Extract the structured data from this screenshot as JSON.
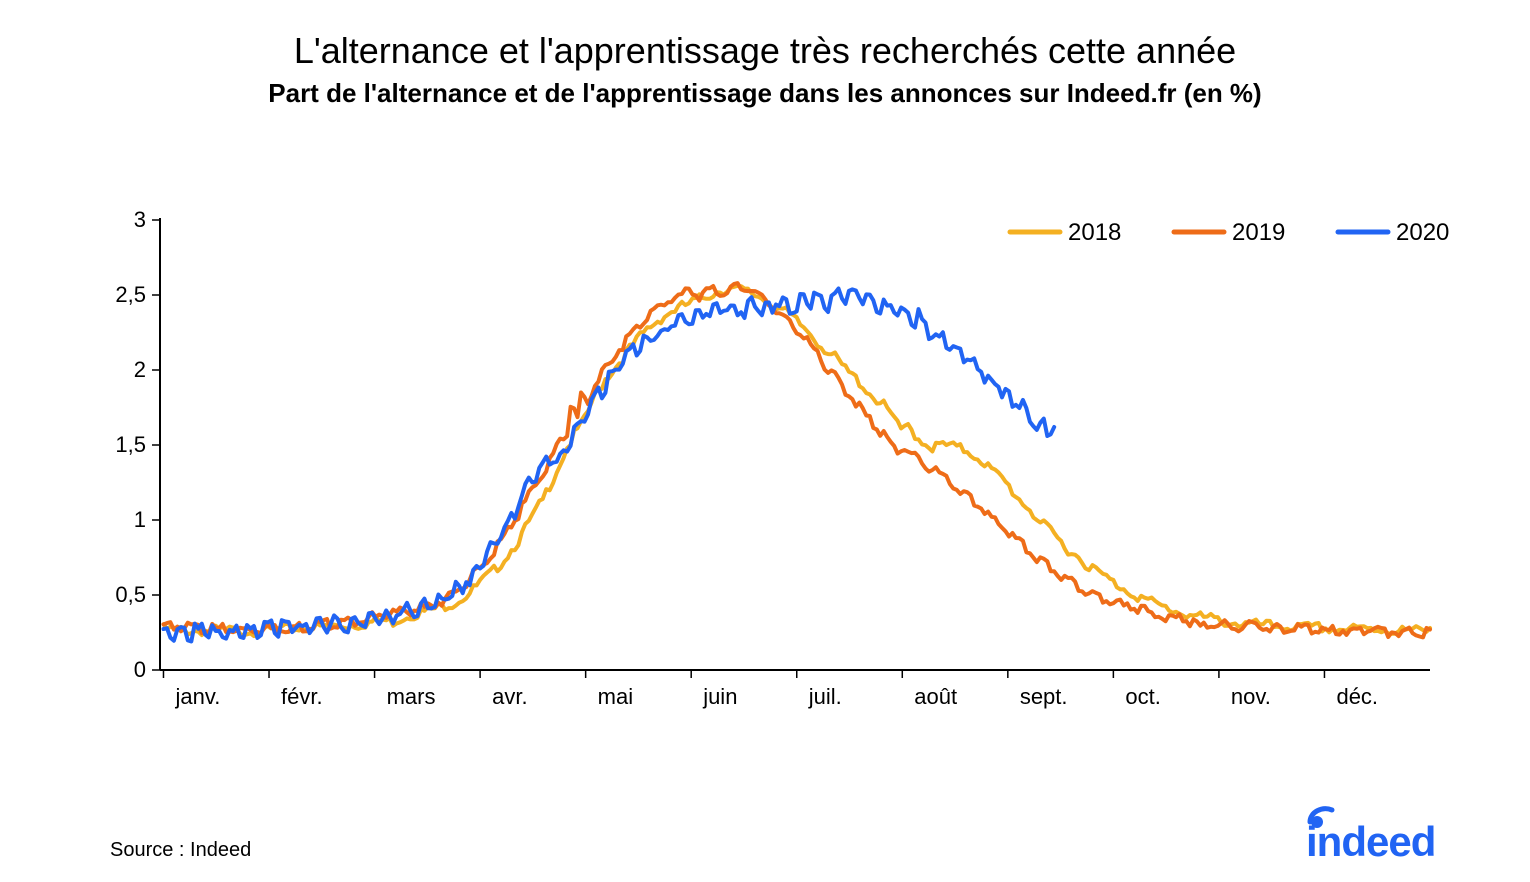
{
  "title": "L'alternance et l'apprentissage très recherchés cette année",
  "subtitle": "Part de l'alternance et de l'apprentissage dans les annonces sur Indeed.fr (en %)",
  "source": "Source : Indeed",
  "logo_text": "indeed",
  "chart": {
    "type": "line",
    "background_color": "#ffffff",
    "axis_color": "#000000",
    "axis_fontsize": 22,
    "title_fontsize": 36,
    "subtitle_fontsize": 26,
    "line_width": 4,
    "x_labels": [
      "janv.",
      "févr.",
      "mars",
      "avr.",
      "mai",
      "juin",
      "juil.",
      "août",
      "sept.",
      "oct.",
      "nov.",
      "déc."
    ],
    "y_ticks": [
      0,
      0.5,
      1,
      1.5,
      2,
      2.5,
      3
    ],
    "y_tick_labels": [
      "0",
      "0,5",
      "1",
      "1,5",
      "2",
      "2,5",
      "3"
    ],
    "ylim": [
      0,
      3
    ],
    "xlim": [
      0,
      365
    ],
    "legend": {
      "position": "top-right",
      "fontsize": 24,
      "items": [
        {
          "label": "2018",
          "color": "#f4b022"
        },
        {
          "label": "2019",
          "color": "#ee6c18"
        },
        {
          "label": "2020",
          "color": "#2164f3"
        }
      ]
    },
    "series": [
      {
        "name": "2018",
        "color": "#f4b022",
        "data": [
          [
            1,
            0.29
          ],
          [
            8,
            0.28
          ],
          [
            15,
            0.28
          ],
          [
            22,
            0.28
          ],
          [
            29,
            0.28
          ],
          [
            36,
            0.29
          ],
          [
            43,
            0.3
          ],
          [
            50,
            0.31
          ],
          [
            57,
            0.32
          ],
          [
            59,
            0.33
          ],
          [
            64,
            0.35
          ],
          [
            67,
            0.34
          ],
          [
            71,
            0.38
          ],
          [
            75,
            0.4
          ],
          [
            78,
            0.42
          ],
          [
            82,
            0.45
          ],
          [
            85,
            0.47
          ],
          [
            89,
            0.53
          ],
          [
            92,
            0.6
          ],
          [
            96,
            0.68
          ],
          [
            99,
            0.76
          ],
          [
            103,
            0.88
          ],
          [
            106,
            1.0
          ],
          [
            110,
            1.15
          ],
          [
            113,
            1.3
          ],
          [
            117,
            1.5
          ],
          [
            120,
            1.62
          ],
          [
            122,
            1.68
          ],
          [
            124,
            1.8
          ],
          [
            126,
            1.88
          ],
          [
            128,
            1.96
          ],
          [
            131,
            2.04
          ],
          [
            134,
            2.13
          ],
          [
            138,
            2.24
          ],
          [
            141,
            2.31
          ],
          [
            145,
            2.38
          ],
          [
            148,
            2.42
          ],
          [
            150,
            2.44
          ],
          [
            153,
            2.47
          ],
          [
            155,
            2.49
          ],
          [
            158,
            2.52
          ],
          [
            161,
            2.55
          ],
          [
            164,
            2.56
          ],
          [
            167,
            2.55
          ],
          [
            170,
            2.53
          ],
          [
            173,
            2.5
          ],
          [
            176,
            2.46
          ],
          [
            180,
            2.4
          ],
          [
            183,
            2.34
          ],
          [
            187,
            2.26
          ],
          [
            190,
            2.18
          ],
          [
            194,
            2.1
          ],
          [
            197,
            2.02
          ],
          [
            201,
            1.94
          ],
          [
            204,
            1.86
          ],
          [
            208,
            1.78
          ],
          [
            211,
            1.7
          ],
          [
            213,
            1.6
          ],
          [
            215,
            1.65
          ],
          [
            218,
            1.56
          ],
          [
            222,
            1.5
          ],
          [
            225,
            1.52
          ],
          [
            229,
            1.5
          ],
          [
            232,
            1.48
          ],
          [
            236,
            1.42
          ],
          [
            239,
            1.35
          ],
          [
            243,
            1.27
          ],
          [
            246,
            1.18
          ],
          [
            250,
            1.09
          ],
          [
            253,
            1.0
          ],
          [
            257,
            0.92
          ],
          [
            260,
            0.84
          ],
          [
            264,
            0.77
          ],
          [
            267,
            0.71
          ],
          [
            271,
            0.65
          ],
          [
            274,
            0.6
          ],
          [
            278,
            0.55
          ],
          [
            281,
            0.51
          ],
          [
            285,
            0.47
          ],
          [
            288,
            0.44
          ],
          [
            292,
            0.41
          ],
          [
            295,
            0.39
          ],
          [
            299,
            0.37
          ],
          [
            302,
            0.36
          ],
          [
            306,
            0.34
          ],
          [
            309,
            0.33
          ],
          [
            313,
            0.32
          ],
          [
            316,
            0.32
          ],
          [
            320,
            0.31
          ],
          [
            323,
            0.31
          ],
          [
            327,
            0.3
          ],
          [
            330,
            0.3
          ],
          [
            334,
            0.3
          ],
          [
            337,
            0.29
          ],
          [
            341,
            0.29
          ],
          [
            344,
            0.29
          ],
          [
            348,
            0.29
          ],
          [
            351,
            0.29
          ],
          [
            355,
            0.28
          ],
          [
            358,
            0.28
          ],
          [
            362,
            0.28
          ],
          [
            365,
            0.28
          ]
        ]
      },
      {
        "name": "2019",
        "color": "#ee6c18",
        "data": [
          [
            1,
            0.32
          ],
          [
            8,
            0.3
          ],
          [
            15,
            0.29
          ],
          [
            22,
            0.29
          ],
          [
            29,
            0.29
          ],
          [
            36,
            0.3
          ],
          [
            43,
            0.31
          ],
          [
            50,
            0.33
          ],
          [
            57,
            0.35
          ],
          [
            59,
            0.36
          ],
          [
            64,
            0.38
          ],
          [
            67,
            0.4
          ],
          [
            71,
            0.41
          ],
          [
            75,
            0.43
          ],
          [
            78,
            0.45
          ],
          [
            82,
            0.49
          ],
          [
            85,
            0.54
          ],
          [
            89,
            0.62
          ],
          [
            92,
            0.7
          ],
          [
            96,
            0.8
          ],
          [
            99,
            0.92
          ],
          [
            103,
            1.05
          ],
          [
            106,
            1.18
          ],
          [
            110,
            1.32
          ],
          [
            113,
            1.46
          ],
          [
            117,
            1.6
          ],
          [
            118,
            1.8
          ],
          [
            120,
            1.68
          ],
          [
            121,
            1.85
          ],
          [
            123,
            1.8
          ],
          [
            125,
            1.92
          ],
          [
            128,
            2.02
          ],
          [
            131,
            2.12
          ],
          [
            134,
            2.22
          ],
          [
            138,
            2.32
          ],
          [
            141,
            2.4
          ],
          [
            145,
            2.46
          ],
          [
            148,
            2.5
          ],
          [
            150,
            2.52
          ],
          [
            153,
            2.55
          ],
          [
            155,
            2.5
          ],
          [
            158,
            2.56
          ],
          [
            161,
            2.52
          ],
          [
            164,
            2.55
          ],
          [
            167,
            2.58
          ],
          [
            170,
            2.55
          ],
          [
            173,
            2.5
          ],
          [
            176,
            2.44
          ],
          [
            180,
            2.36
          ],
          [
            183,
            2.28
          ],
          [
            187,
            2.18
          ],
          [
            190,
            2.08
          ],
          [
            194,
            1.98
          ],
          [
            197,
            1.88
          ],
          [
            201,
            1.78
          ],
          [
            204,
            1.68
          ],
          [
            208,
            1.58
          ],
          [
            211,
            1.5
          ],
          [
            215,
            1.48
          ],
          [
            218,
            1.42
          ],
          [
            222,
            1.36
          ],
          [
            225,
            1.3
          ],
          [
            229,
            1.24
          ],
          [
            232,
            1.17
          ],
          [
            236,
            1.1
          ],
          [
            239,
            1.03
          ],
          [
            243,
            0.95
          ],
          [
            246,
            0.88
          ],
          [
            250,
            0.81
          ],
          [
            253,
            0.74
          ],
          [
            257,
            0.68
          ],
          [
            260,
            0.63
          ],
          [
            264,
            0.58
          ],
          [
            267,
            0.54
          ],
          [
            271,
            0.5
          ],
          [
            274,
            0.47
          ],
          [
            278,
            0.44
          ],
          [
            281,
            0.42
          ],
          [
            285,
            0.4
          ],
          [
            288,
            0.38
          ],
          [
            292,
            0.36
          ],
          [
            295,
            0.35
          ],
          [
            299,
            0.3
          ],
          [
            302,
            0.33
          ],
          [
            306,
            0.32
          ],
          [
            309,
            0.31
          ],
          [
            313,
            0.31
          ],
          [
            316,
            0.3
          ],
          [
            320,
            0.3
          ],
          [
            323,
            0.29
          ],
          [
            327,
            0.29
          ],
          [
            330,
            0.29
          ],
          [
            334,
            0.28
          ],
          [
            337,
            0.28
          ],
          [
            341,
            0.28
          ],
          [
            344,
            0.28
          ],
          [
            348,
            0.28
          ],
          [
            351,
            0.27
          ],
          [
            355,
            0.27
          ],
          [
            358,
            0.27
          ],
          [
            362,
            0.27
          ],
          [
            365,
            0.27
          ]
        ]
      },
      {
        "name": "2020",
        "color": "#2164f3",
        "data": [
          [
            1,
            0.27
          ],
          [
            8,
            0.28
          ],
          [
            15,
            0.28
          ],
          [
            22,
            0.29
          ],
          [
            29,
            0.3
          ],
          [
            36,
            0.31
          ],
          [
            43,
            0.32
          ],
          [
            50,
            0.34
          ],
          [
            52,
            0.32
          ],
          [
            57,
            0.36
          ],
          [
            60,
            0.35
          ],
          [
            64,
            0.4
          ],
          [
            66,
            0.38
          ],
          [
            71,
            0.43
          ],
          [
            73,
            0.42
          ],
          [
            78,
            0.48
          ],
          [
            81,
            0.5
          ],
          [
            85,
            0.56
          ],
          [
            89,
            0.64
          ],
          [
            92,
            0.74
          ],
          [
            96,
            0.86
          ],
          [
            99,
            0.98
          ],
          [
            103,
            1.12
          ],
          [
            106,
            1.26
          ],
          [
            110,
            1.36
          ],
          [
            112,
            1.44
          ],
          [
            114,
            1.4
          ],
          [
            117,
            1.52
          ],
          [
            120,
            1.65
          ],
          [
            124,
            1.78
          ],
          [
            127,
            1.9
          ],
          [
            131,
            2.02
          ],
          [
            134,
            2.12
          ],
          [
            136,
            2.15
          ],
          [
            138,
            2.2
          ],
          [
            141,
            2.24
          ],
          [
            145,
            2.3
          ],
          [
            148,
            2.34
          ],
          [
            150,
            2.36
          ],
          [
            153,
            2.39
          ],
          [
            155,
            2.41
          ],
          [
            158,
            2.42
          ],
          [
            161,
            2.44
          ],
          [
            164,
            2.43
          ],
          [
            167,
            2.44
          ],
          [
            168,
            2.42
          ],
          [
            170,
            2.46
          ],
          [
            173,
            2.45
          ],
          [
            176,
            2.47
          ],
          [
            180,
            2.48
          ],
          [
            182,
            2.45
          ],
          [
            185,
            2.5
          ],
          [
            187,
            2.48
          ],
          [
            190,
            2.52
          ],
          [
            192,
            2.45
          ],
          [
            195,
            2.55
          ],
          [
            197,
            2.5
          ],
          [
            200,
            2.52
          ],
          [
            203,
            2.5
          ],
          [
            206,
            2.45
          ],
          [
            208,
            2.48
          ],
          [
            210,
            2.42
          ],
          [
            213,
            2.4
          ],
          [
            216,
            2.36
          ],
          [
            218,
            2.38
          ],
          [
            220,
            2.3
          ],
          [
            223,
            2.26
          ],
          [
            226,
            2.22
          ],
          [
            229,
            2.16
          ],
          [
            232,
            2.1
          ],
          [
            235,
            2.04
          ],
          [
            238,
            1.98
          ],
          [
            241,
            1.93
          ],
          [
            243,
            1.88
          ],
          [
            246,
            1.82
          ],
          [
            248,
            1.78
          ],
          [
            250,
            1.72
          ],
          [
            252,
            1.68
          ],
          [
            255,
            1.63
          ],
          [
            257,
            1.62
          ]
        ]
      }
    ]
  }
}
